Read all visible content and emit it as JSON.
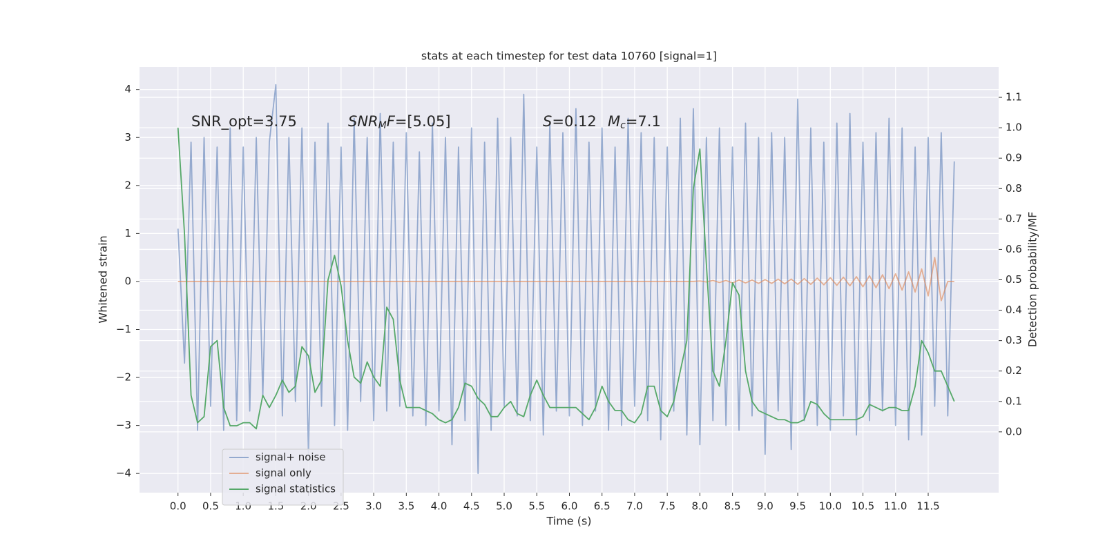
{
  "chart_data": {
    "type": "line",
    "title": "stats at each timestep for test data 10760 [signal=1]",
    "xlabel": "Time (s)",
    "ylabel": "Whitened strain",
    "y2label": "Detection probability/MF",
    "annotations": [
      [
        {
          "text": "SNR_opt=3.75"
        }
      ],
      [
        {
          "text": "SNR",
          "style": "italic"
        },
        {
          "text": "M",
          "style": "sub"
        },
        {
          "text": "F",
          "style": "italic"
        },
        {
          "text": "=[5.05]"
        }
      ],
      [
        {
          "text": "S",
          "style": "italic"
        },
        {
          "text": "=0.12"
        }
      ],
      [
        {
          "text": "M",
          "style": "italic"
        },
        {
          "text": "c",
          "style": "sub"
        },
        {
          "text": "=7.1"
        }
      ]
    ],
    "x": [
      0,
      0.1,
      0.2,
      0.3,
      0.4,
      0.5,
      0.6,
      0.7,
      0.8,
      0.9,
      1,
      1.1,
      1.2,
      1.3,
      1.4,
      1.5,
      1.6,
      1.7,
      1.8,
      1.9,
      2,
      2.1,
      2.2,
      2.3,
      2.4,
      2.5,
      2.6,
      2.7,
      2.8,
      2.9,
      3,
      3.1,
      3.2,
      3.3,
      3.4,
      3.5,
      3.6,
      3.7,
      3.8,
      3.9,
      4,
      4.1,
      4.2,
      4.3,
      4.4,
      4.5,
      4.6,
      4.7,
      4.8,
      4.9,
      5,
      5.1,
      5.2,
      5.3,
      5.4,
      5.5,
      5.6,
      5.7,
      5.8,
      5.9,
      6,
      6.1,
      6.2,
      6.3,
      6.4,
      6.5,
      6.6,
      6.7,
      6.8,
      6.9,
      7,
      7.1,
      7.2,
      7.3,
      7.4,
      7.5,
      7.6,
      7.7,
      7.8,
      7.9,
      8,
      8.1,
      8.2,
      8.3,
      8.4,
      8.5,
      8.6,
      8.7,
      8.8,
      8.9,
      9,
      9.1,
      9.2,
      9.3,
      9.4,
      9.5,
      9.6,
      9.7,
      9.8,
      9.9,
      10,
      10.1,
      10.2,
      10.3,
      10.4,
      10.5,
      10.6,
      10.7,
      10.8,
      10.9,
      11,
      11.1,
      11.2,
      11.3,
      11.4,
      11.5,
      11.6,
      11.7,
      11.8,
      11.9
    ],
    "series": [
      {
        "name": "signal+ noise",
        "color": "#4c72b0",
        "opacity": 0.55,
        "values": [
          1.1,
          -1.7,
          2.9,
          -3.1,
          3.0,
          -2.6,
          2.8,
          -3.1,
          3.2,
          -2.9,
          2.8,
          -2.7,
          3.0,
          -2.4,
          2.9,
          4.1,
          -2.8,
          3.0,
          -2.5,
          3.2,
          -3.6,
          2.9,
          -2.6,
          3.3,
          -3.0,
          2.8,
          -3.1,
          3.4,
          -2.5,
          3.0,
          -2.9,
          3.5,
          -2.7,
          2.9,
          -2.6,
          3.1,
          -2.8,
          2.7,
          -3.0,
          3.3,
          -2.7,
          3.0,
          -3.4,
          2.8,
          -2.9,
          3.2,
          -4.0,
          2.9,
          -3.1,
          3.4,
          -2.6,
          3.0,
          -2.8,
          3.9,
          -2.9,
          2.8,
          -3.2,
          3.3,
          -2.7,
          3.1,
          -2.8,
          3.6,
          -3.0,
          2.9,
          -2.7,
          3.2,
          -3.1,
          2.8,
          -3.0,
          3.4,
          -2.6,
          3.1,
          -2.9,
          3.0,
          -3.3,
          2.8,
          -2.7,
          3.4,
          -3.2,
          3.6,
          -3.4,
          3.0,
          -2.9,
          3.2,
          -3.0,
          2.8,
          -3.1,
          3.3,
          -2.8,
          3.0,
          -3.6,
          3.1,
          -2.7,
          3.0,
          -3.5,
          3.8,
          -2.9,
          3.2,
          -3.0,
          2.9,
          -3.1,
          3.3,
          -2.8,
          3.5,
          -3.2,
          2.9,
          -2.9,
          3.1,
          -2.7,
          3.4,
          -3.0,
          3.2,
          -3.3,
          2.8,
          -3.2,
          3.0,
          -2.6,
          3.1,
          -2.8,
          2.5
        ]
      },
      {
        "name": "signal only",
        "color": "#dd8452",
        "opacity": 0.6,
        "values": [
          0,
          0,
          0,
          0,
          0,
          0,
          0,
          0,
          0,
          0,
          0,
          0,
          0,
          0,
          0,
          0,
          0,
          0,
          0,
          0,
          0,
          0,
          0,
          0,
          0,
          0,
          0,
          0,
          0,
          0,
          0,
          0,
          0,
          0,
          0,
          0,
          0,
          0,
          0,
          0,
          0,
          0,
          0,
          0,
          0,
          0,
          0,
          0,
          0,
          0,
          0,
          0,
          0,
          0,
          0,
          0,
          0,
          0,
          0,
          0,
          0,
          0,
          0,
          0,
          0,
          0,
          0,
          0,
          0,
          0,
          0,
          0,
          0,
          0,
          0,
          0,
          0,
          0,
          0,
          0,
          0.01,
          -0.01,
          0.02,
          -0.02,
          0.02,
          -0.03,
          0.03,
          -0.03,
          0.03,
          -0.04,
          0.04,
          -0.04,
          0.05,
          -0.05,
          0.05,
          -0.06,
          0.06,
          -0.06,
          0.07,
          -0.07,
          0.08,
          -0.08,
          0.09,
          -0.09,
          0.1,
          -0.11,
          0.12,
          -0.13,
          0.14,
          -0.15,
          0.16,
          -0.18,
          0.2,
          -0.22,
          0.26,
          -0.3,
          0.5,
          -0.4,
          0,
          0
        ]
      },
      {
        "name": "signal statistics",
        "color": "#55a868",
        "opacity": 1,
        "axis": "y2",
        "values": [
          1.0,
          0.65,
          0.12,
          0.03,
          0.05,
          0.28,
          0.3,
          0.08,
          0.02,
          0.02,
          0.03,
          0.03,
          0.01,
          0.12,
          0.08,
          0.12,
          0.17,
          0.13,
          0.15,
          0.28,
          0.25,
          0.13,
          0.17,
          0.5,
          0.58,
          0.48,
          0.3,
          0.18,
          0.16,
          0.23,
          0.18,
          0.15,
          0.41,
          0.37,
          0.17,
          0.08,
          0.08,
          0.08,
          0.07,
          0.06,
          0.04,
          0.03,
          0.04,
          0.08,
          0.16,
          0.15,
          0.11,
          0.09,
          0.05,
          0.05,
          0.08,
          0.1,
          0.06,
          0.05,
          0.12,
          0.17,
          0.12,
          0.08,
          0.08,
          0.08,
          0.08,
          0.08,
          0.06,
          0.04,
          0.08,
          0.15,
          0.1,
          0.07,
          0.07,
          0.04,
          0.03,
          0.06,
          0.15,
          0.15,
          0.07,
          0.05,
          0.1,
          0.2,
          0.3,
          0.8,
          0.93,
          0.55,
          0.2,
          0.15,
          0.3,
          0.49,
          0.45,
          0.2,
          0.1,
          0.07,
          0.06,
          0.05,
          0.04,
          0.04,
          0.03,
          0.03,
          0.04,
          0.1,
          0.09,
          0.06,
          0.04,
          0.04,
          0.04,
          0.04,
          0.04,
          0.05,
          0.09,
          0.08,
          0.07,
          0.08,
          0.08,
          0.07,
          0.07,
          0.15,
          0.3,
          0.26,
          0.2,
          0.2,
          0.15,
          0.1
        ]
      }
    ],
    "xlim": [
      -0.59,
      12.58
    ],
    "ylim": [
      -4.4,
      4.47
    ],
    "y2lim": [
      -0.2,
      1.2
    ],
    "xticks": [
      {
        "value": 0,
        "label": "0.0"
      },
      0.5,
      {
        "value": 1,
        "label": "1.0"
      },
      1.5,
      {
        "value": 2,
        "label": "2.0"
      },
      2.5,
      {
        "value": 3,
        "label": "3.0"
      },
      3.5,
      {
        "value": 4,
        "label": "4.0"
      },
      4.5,
      {
        "value": 5,
        "label": "5.0"
      },
      5.5,
      {
        "value": 6,
        "label": "6.0"
      },
      6.5,
      {
        "value": 7,
        "label": "7.0"
      },
      7.5,
      {
        "value": 8,
        "label": "8.0"
      },
      8.5,
      {
        "value": 9,
        "label": "9.0"
      },
      9.5,
      {
        "value": 10,
        "label": "10.0"
      },
      10.5,
      {
        "value": 11,
        "label": "11.0"
      },
      11.5
    ],
    "yticks": [
      {
        "value": -4,
        "label": "−4"
      },
      {
        "value": -3,
        "label": "−3"
      },
      {
        "value": -2,
        "label": "−2"
      },
      {
        "value": -1,
        "label": "−1"
      },
      0,
      1,
      2,
      3,
      4
    ],
    "y2ticks": [
      {
        "value": 0,
        "label": "0.0"
      },
      0.1,
      0.2,
      0.3,
      0.4,
      0.5,
      0.6,
      0.7,
      0.8,
      0.9,
      {
        "value": 1,
        "label": "1.0"
      },
      1.1
    ],
    "grid": true,
    "legend": "lower left"
  }
}
